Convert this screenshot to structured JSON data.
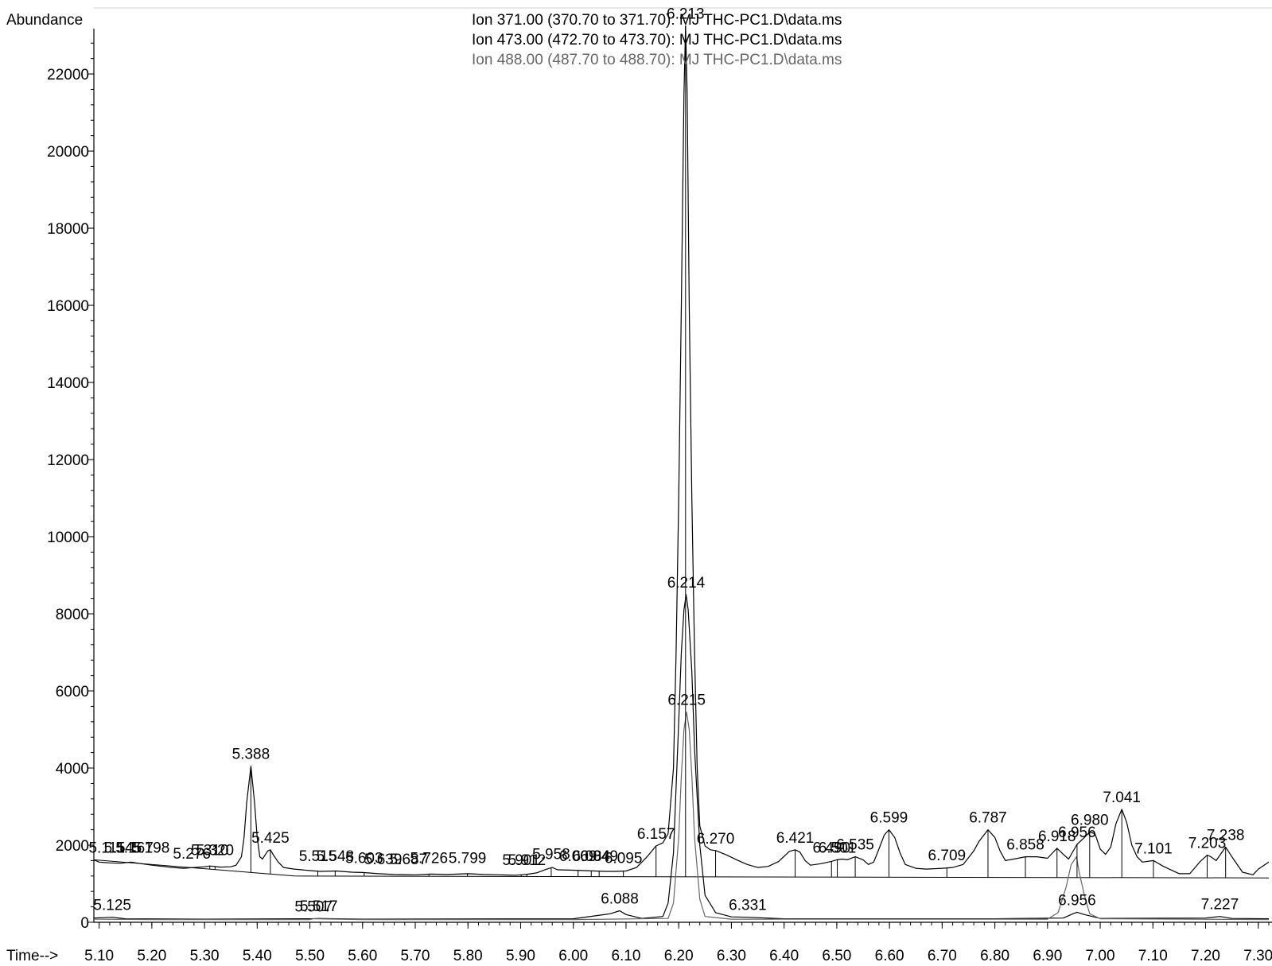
{
  "chart_data": {
    "type": "line",
    "ylabel": "Abundance",
    "xlabel": "Time-->",
    "xlim": [
      5.09,
      7.32
    ],
    "ylim": [
      0,
      23300
    ],
    "x_ticks": [
      "5.10",
      "5.20",
      "5.30",
      "5.40",
      "5.50",
      "5.60",
      "5.70",
      "5.80",
      "5.90",
      "6.00",
      "6.10",
      "6.20",
      "6.30",
      "6.40",
      "6.50",
      "6.60",
      "6.70",
      "6.80",
      "6.90",
      "7.00",
      "7.10",
      "7.20",
      "7.30"
    ],
    "y_ticks": [
      "0",
      "2000",
      "4000",
      "6000",
      "8000",
      "10000",
      "12000",
      "14000",
      "16000",
      "18000",
      "20000",
      "22000"
    ],
    "grid": false,
    "legend_position": "top-center",
    "series": [
      {
        "name": "Ion 371.00 (370.70 to 371.70): MJ THC-PC1.D\\data.ms",
        "color": "#000000",
        "baseline": [
          [
            5.09,
            1620
          ],
          [
            5.47,
            1200
          ],
          [
            7.32,
            1150
          ]
        ],
        "points": [
          [
            5.09,
            1620
          ],
          [
            5.1,
            1560
          ],
          [
            5.12,
            1540
          ],
          [
            5.14,
            1530
          ],
          [
            5.16,
            1560
          ],
          [
            5.18,
            1520
          ],
          [
            5.2,
            1480
          ],
          [
            5.22,
            1450
          ],
          [
            5.24,
            1420
          ],
          [
            5.26,
            1400
          ],
          [
            5.28,
            1420
          ],
          [
            5.3,
            1440
          ],
          [
            5.31,
            1460
          ],
          [
            5.33,
            1430
          ],
          [
            5.35,
            1440
          ],
          [
            5.36,
            1480
          ],
          [
            5.37,
            1700
          ],
          [
            5.375,
            2200
          ],
          [
            5.38,
            3100
          ],
          [
            5.388,
            4050
          ],
          [
            5.395,
            3100
          ],
          [
            5.4,
            2200
          ],
          [
            5.405,
            1700
          ],
          [
            5.41,
            1640
          ],
          [
            5.42,
            1850
          ],
          [
            5.425,
            1880
          ],
          [
            5.43,
            1760
          ],
          [
            5.44,
            1560
          ],
          [
            5.45,
            1420
          ],
          [
            5.47,
            1380
          ],
          [
            5.5,
            1340
          ],
          [
            5.52,
            1320
          ],
          [
            5.55,
            1330
          ],
          [
            5.58,
            1300
          ],
          [
            5.6,
            1290
          ],
          [
            5.63,
            1260
          ],
          [
            5.66,
            1240
          ],
          [
            5.7,
            1230
          ],
          [
            5.73,
            1250
          ],
          [
            5.76,
            1240
          ],
          [
            5.8,
            1260
          ],
          [
            5.83,
            1240
          ],
          [
            5.86,
            1230
          ],
          [
            5.89,
            1220
          ],
          [
            5.91,
            1240
          ],
          [
            5.93,
            1280
          ],
          [
            5.95,
            1380
          ],
          [
            5.96,
            1420
          ],
          [
            5.97,
            1360
          ],
          [
            6.0,
            1350
          ],
          [
            6.02,
            1340
          ],
          [
            6.04,
            1330
          ],
          [
            6.06,
            1320
          ],
          [
            6.08,
            1320
          ],
          [
            6.1,
            1330
          ],
          [
            6.12,
            1420
          ],
          [
            6.14,
            1700
          ],
          [
            6.157,
            1980
          ],
          [
            6.17,
            2060
          ],
          [
            6.18,
            2300
          ],
          [
            6.19,
            4000
          ],
          [
            6.195,
            7000
          ],
          [
            6.2,
            11000
          ],
          [
            6.205,
            16000
          ],
          [
            6.21,
            21500
          ],
          [
            6.213,
            23250
          ],
          [
            6.216,
            21500
          ],
          [
            6.22,
            16000
          ],
          [
            6.225,
            11000
          ],
          [
            6.23,
            7000
          ],
          [
            6.235,
            4000
          ],
          [
            6.24,
            2500
          ],
          [
            6.25,
            1980
          ],
          [
            6.26,
            1880
          ],
          [
            6.27,
            1860
          ],
          [
            6.29,
            1750
          ],
          [
            6.31,
            1620
          ],
          [
            6.33,
            1500
          ],
          [
            6.35,
            1420
          ],
          [
            6.37,
            1450
          ],
          [
            6.39,
            1580
          ],
          [
            6.41,
            1840
          ],
          [
            6.421,
            1880
          ],
          [
            6.43,
            1820
          ],
          [
            6.44,
            1600
          ],
          [
            6.45,
            1480
          ],
          [
            6.47,
            1520
          ],
          [
            6.49,
            1580
          ],
          [
            6.5,
            1620
          ],
          [
            6.51,
            1640
          ],
          [
            6.52,
            1620
          ],
          [
            6.535,
            1700
          ],
          [
            6.55,
            1620
          ],
          [
            6.56,
            1500
          ],
          [
            6.57,
            1560
          ],
          [
            6.58,
            1900
          ],
          [
            6.59,
            2260
          ],
          [
            6.599,
            2400
          ],
          [
            6.61,
            2200
          ],
          [
            6.62,
            1800
          ],
          [
            6.63,
            1500
          ],
          [
            6.65,
            1400
          ],
          [
            6.67,
            1380
          ],
          [
            6.7,
            1400
          ],
          [
            6.72,
            1420
          ],
          [
            6.74,
            1500
          ],
          [
            6.76,
            1850
          ],
          [
            6.77,
            2100
          ],
          [
            6.787,
            2400
          ],
          [
            6.8,
            2200
          ],
          [
            6.81,
            1850
          ],
          [
            6.82,
            1600
          ],
          [
            6.84,
            1650
          ],
          [
            6.858,
            1700
          ],
          [
            6.88,
            1700
          ],
          [
            6.9,
            1660
          ],
          [
            6.918,
            1920
          ],
          [
            6.93,
            1760
          ],
          [
            6.94,
            1640
          ],
          [
            6.956,
            2020
          ],
          [
            6.97,
            2200
          ],
          [
            6.98,
            2340
          ],
          [
            6.99,
            2300
          ],
          [
            7.0,
            1900
          ],
          [
            7.01,
            1760
          ],
          [
            7.02,
            1950
          ],
          [
            7.03,
            2560
          ],
          [
            7.041,
            2930
          ],
          [
            7.05,
            2600
          ],
          [
            7.06,
            2000
          ],
          [
            7.07,
            1700
          ],
          [
            7.08,
            1560
          ],
          [
            7.101,
            1600
          ],
          [
            7.12,
            1450
          ],
          [
            7.15,
            1260
          ],
          [
            7.17,
            1260
          ],
          [
            7.19,
            1580
          ],
          [
            7.203,
            1740
          ],
          [
            7.21,
            1700
          ],
          [
            7.22,
            1600
          ],
          [
            7.238,
            1950
          ],
          [
            7.25,
            1700
          ],
          [
            7.27,
            1300
          ],
          [
            7.29,
            1230
          ],
          [
            7.3,
            1380
          ],
          [
            7.32,
            1560
          ]
        ]
      },
      {
        "name": "Ion 473.00 (472.70 to 473.70): MJ THC-PC1.D\\data.ms",
        "color": "#000000",
        "points": [
          [
            5.09,
            110
          ],
          [
            5.125,
            130
          ],
          [
            5.15,
            90
          ],
          [
            5.3,
            80
          ],
          [
            5.5,
            90
          ],
          [
            5.517,
            100
          ],
          [
            5.6,
            80
          ],
          [
            6.0,
            90
          ],
          [
            6.07,
            220
          ],
          [
            6.088,
            300
          ],
          [
            6.1,
            200
          ],
          [
            6.13,
            100
          ],
          [
            6.17,
            150
          ],
          [
            6.18,
            500
          ],
          [
            6.19,
            1800
          ],
          [
            6.2,
            5200
          ],
          [
            6.205,
            7000
          ],
          [
            6.21,
            8100
          ],
          [
            6.214,
            8500
          ],
          [
            6.218,
            8100
          ],
          [
            6.225,
            6500
          ],
          [
            6.23,
            4500
          ],
          [
            6.24,
            2000
          ],
          [
            6.25,
            700
          ],
          [
            6.27,
            250
          ],
          [
            6.3,
            140
          ],
          [
            6.331,
            130
          ],
          [
            6.4,
            90
          ],
          [
            6.8,
            90
          ],
          [
            6.93,
            110
          ],
          [
            6.95,
            230
          ],
          [
            6.956,
            260
          ],
          [
            6.97,
            200
          ],
          [
            7.0,
            100
          ],
          [
            7.2,
            110
          ],
          [
            7.227,
            150
          ],
          [
            7.25,
            100
          ],
          [
            7.32,
            90
          ]
        ]
      },
      {
        "name": "Ion 488.00 (487.70 to 488.70): MJ THC-PC1.D\\data.ms",
        "color": "#666666",
        "points": [
          [
            5.09,
            80
          ],
          [
            5.2,
            70
          ],
          [
            5.5,
            70
          ],
          [
            5.507,
            90
          ],
          [
            5.6,
            70
          ],
          [
            6.0,
            70
          ],
          [
            6.18,
            100
          ],
          [
            6.19,
            500
          ],
          [
            6.2,
            2200
          ],
          [
            6.205,
            3800
          ],
          [
            6.21,
            5000
          ],
          [
            6.215,
            5450
          ],
          [
            6.22,
            5000
          ],
          [
            6.225,
            3800
          ],
          [
            6.23,
            2200
          ],
          [
            6.24,
            600
          ],
          [
            6.25,
            150
          ],
          [
            6.3,
            80
          ],
          [
            6.9,
            80
          ],
          [
            6.92,
            250
          ],
          [
            6.935,
            900
          ],
          [
            6.945,
            1500
          ],
          [
            6.955,
            1700
          ],
          [
            6.96,
            1300
          ],
          [
            6.97,
            700
          ],
          [
            6.98,
            220
          ],
          [
            7.0,
            90
          ],
          [
            7.32,
            70
          ]
        ]
      }
    ],
    "peak_labels": [
      {
        "text": "5.388",
        "x": 5.388,
        "y": 4050
      },
      {
        "text": "5.425",
        "x": 5.425,
        "y": 1880
      },
      {
        "text": "5.276",
        "x": 5.276,
        "y": 1460
      },
      {
        "text": "5.310",
        "x": 5.31,
        "y": 1560
      },
      {
        "text": "5.320",
        "x": 5.32,
        "y": 1560
      },
      {
        "text": "5.115",
        "x": 5.115,
        "y": 1620
      },
      {
        "text": "5.145",
        "x": 5.145,
        "y": 1620
      },
      {
        "text": "5.167",
        "x": 5.167,
        "y": 1620
      },
      {
        "text": "5.198",
        "x": 5.198,
        "y": 1620
      },
      {
        "text": "5.515",
        "x": 5.515,
        "y": 1400
      },
      {
        "text": "5.548",
        "x": 5.548,
        "y": 1400
      },
      {
        "text": "5.603",
        "x": 5.603,
        "y": 1350
      },
      {
        "text": "5.639",
        "x": 5.639,
        "y": 1320
      },
      {
        "text": "5.687",
        "x": 5.687,
        "y": 1320
      },
      {
        "text": "5.726",
        "x": 5.726,
        "y": 1350
      },
      {
        "text": "5.799",
        "x": 5.799,
        "y": 1350
      },
      {
        "text": "5.901",
        "x": 5.901,
        "y": 1300
      },
      {
        "text": "5.912",
        "x": 5.912,
        "y": 1300
      },
      {
        "text": "5.958",
        "x": 5.958,
        "y": 1450
      },
      {
        "text": "6.009",
        "x": 6.009,
        "y": 1400
      },
      {
        "text": "6.034",
        "x": 6.034,
        "y": 1400
      },
      {
        "text": "6.049",
        "x": 6.049,
        "y": 1400
      },
      {
        "text": "6.095",
        "x": 6.095,
        "y": 1350
      },
      {
        "text": "6.157",
        "x": 6.157,
        "y": 1980
      },
      {
        "text": "6.213",
        "x": 6.213,
        "y": 23250
      },
      {
        "text": "6.270",
        "x": 6.27,
        "y": 1860
      },
      {
        "text": "6.421",
        "x": 6.421,
        "y": 1880
      },
      {
        "text": "6.490",
        "x": 6.49,
        "y": 1620
      },
      {
        "text": "6.501",
        "x": 6.501,
        "y": 1620
      },
      {
        "text": "6.535",
        "x": 6.535,
        "y": 1700
      },
      {
        "text": "6.599",
        "x": 6.599,
        "y": 2400
      },
      {
        "text": "6.709",
        "x": 6.709,
        "y": 1420
      },
      {
        "text": "6.787",
        "x": 6.787,
        "y": 2400
      },
      {
        "text": "6.858",
        "x": 6.858,
        "y": 1700
      },
      {
        "text": "6.918",
        "x": 6.918,
        "y": 1920
      },
      {
        "text": "6.956",
        "x": 6.956,
        "y": 2020
      },
      {
        "text": "6.980",
        "x": 6.98,
        "y": 2340
      },
      {
        "text": "7.041",
        "x": 7.041,
        "y": 2930
      },
      {
        "text": "7.101",
        "x": 7.101,
        "y": 1600
      },
      {
        "text": "7.203",
        "x": 7.203,
        "y": 1740
      },
      {
        "text": "7.238",
        "x": 7.238,
        "y": 1950
      },
      {
        "text": "6.214",
        "x": 6.214,
        "y": 8500
      },
      {
        "text": "5.125",
        "x": 5.125,
        "y": 130
      },
      {
        "text": "5.517",
        "x": 5.517,
        "y": 100
      },
      {
        "text": "6.088",
        "x": 6.088,
        "y": 300
      },
      {
        "text": "6.331",
        "x": 6.331,
        "y": 130
      },
      {
        "text": "6.956",
        "x": 6.956,
        "y": 260
      },
      {
        "text": "7.227",
        "x": 7.227,
        "y": 150
      },
      {
        "text": "6.215",
        "x": 6.215,
        "y": 5450
      },
      {
        "text": "5.507",
        "x": 5.507,
        "y": 90
      }
    ],
    "peak_markers": [
      5.388,
      5.425,
      5.276,
      5.31,
      5.32,
      5.515,
      5.548,
      5.603,
      5.726,
      5.799,
      5.901,
      5.912,
      5.958,
      6.009,
      6.034,
      6.049,
      6.095,
      6.157,
      6.213,
      6.27,
      6.421,
      6.49,
      6.501,
      6.535,
      6.599,
      6.709,
      6.787,
      6.858,
      6.918,
      6.956,
      6.98,
      7.041,
      7.101,
      7.203,
      7.238
    ]
  }
}
